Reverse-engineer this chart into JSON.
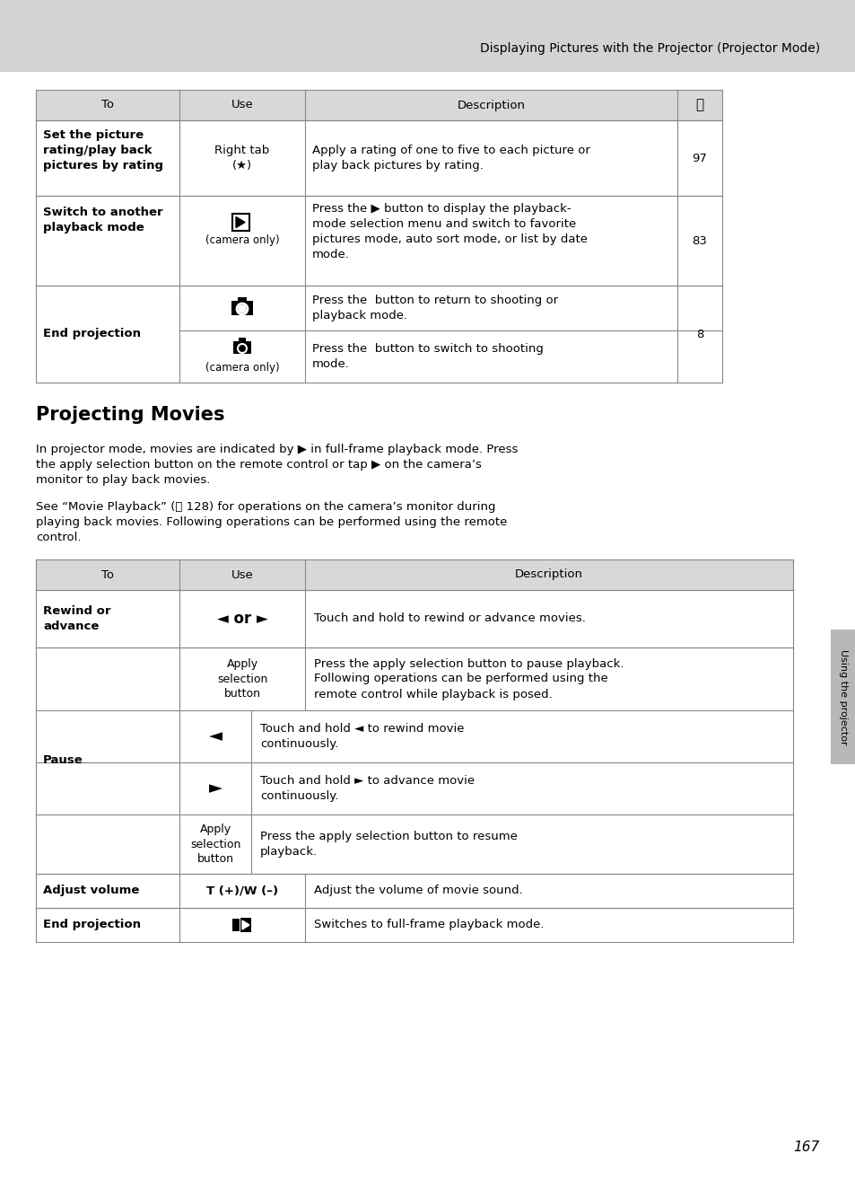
{
  "page_bg": "#ffffff",
  "header_bg": "#d3d3d3",
  "header_text": "Displaying Pictures with the Projector (Projector Mode)",
  "cell_header_bg": "#d8d8d8",
  "sidebar_text": "Using the projector",
  "sidebar_bg": "#b0b0b0",
  "page_number": "167",
  "section_title": "Projecting Movies",
  "fig_w": 9.54,
  "fig_h": 13.14,
  "dpi": 100
}
